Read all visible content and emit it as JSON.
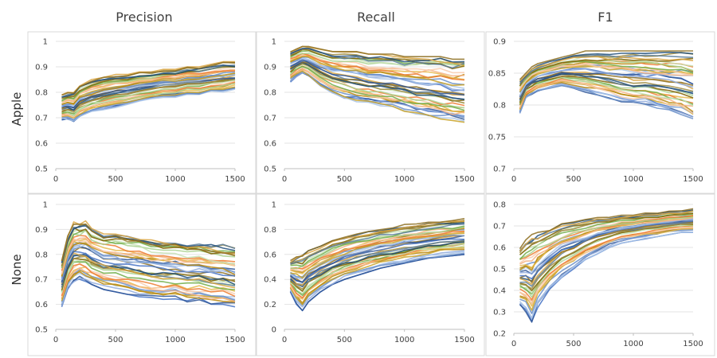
{
  "columns": [
    "Precision",
    "Recall",
    "F1"
  ],
  "rows": [
    "Apple",
    "None"
  ],
  "chart_data": [
    {
      "type": "line",
      "row": "Apple",
      "metric": "Precision",
      "x": [
        50,
        100,
        150,
        200,
        300,
        400,
        500,
        600,
        700,
        800,
        900,
        1000,
        1100,
        1200,
        1300,
        1400,
        1500
      ],
      "ylim": [
        0.5,
        1
      ],
      "yticks": [
        0.5,
        0.6,
        0.7,
        0.8,
        0.9,
        1
      ],
      "xticks": [
        0,
        500,
        1000,
        1500
      ],
      "band": {
        "low": [
          0.69,
          0.69,
          0.68,
          0.7,
          0.72,
          0.73,
          0.74,
          0.75,
          0.76,
          0.77,
          0.78,
          0.78,
          0.79,
          0.79,
          0.8,
          0.8,
          0.81
        ],
        "high": [
          0.79,
          0.8,
          0.8,
          0.83,
          0.85,
          0.86,
          0.87,
          0.87,
          0.88,
          0.88,
          0.89,
          0.89,
          0.9,
          0.9,
          0.91,
          0.92,
          0.92
        ]
      },
      "n_series": 40
    },
    {
      "type": "line",
      "row": "Apple",
      "metric": "Recall",
      "x": [
        50,
        100,
        150,
        200,
        300,
        400,
        500,
        600,
        700,
        800,
        900,
        1000,
        1100,
        1200,
        1300,
        1400,
        1500
      ],
      "ylim": [
        0.5,
        1
      ],
      "yticks": [
        0.5,
        0.6,
        0.7,
        0.8,
        0.9,
        1
      ],
      "xticks": [
        0,
        500,
        1000,
        1500
      ],
      "band": {
        "low": [
          0.84,
          0.86,
          0.87,
          0.86,
          0.82,
          0.79,
          0.77,
          0.76,
          0.75,
          0.74,
          0.73,
          0.72,
          0.71,
          0.7,
          0.69,
          0.68,
          0.67
        ],
        "high": [
          0.96,
          0.97,
          0.98,
          0.98,
          0.97,
          0.96,
          0.96,
          0.96,
          0.95,
          0.95,
          0.95,
          0.94,
          0.94,
          0.94,
          0.94,
          0.93,
          0.93
        ]
      },
      "n_series": 40
    },
    {
      "type": "line",
      "row": "Apple",
      "metric": "F1",
      "x": [
        50,
        100,
        150,
        200,
        300,
        400,
        500,
        600,
        700,
        800,
        900,
        1000,
        1100,
        1200,
        1300,
        1400,
        1500
      ],
      "ylim": [
        0.7,
        0.9
      ],
      "yticks": [
        0.7,
        0.75,
        0.8,
        0.85,
        0.9
      ],
      "xticks": [
        0,
        500,
        1000,
        1500
      ],
      "band": {
        "low": [
          0.785,
          0.81,
          0.815,
          0.82,
          0.825,
          0.83,
          0.825,
          0.82,
          0.815,
          0.81,
          0.805,
          0.8,
          0.8,
          0.795,
          0.79,
          0.785,
          0.775
        ],
        "high": [
          0.84,
          0.85,
          0.86,
          0.865,
          0.87,
          0.875,
          0.88,
          0.885,
          0.885,
          0.885,
          0.885,
          0.885,
          0.885,
          0.885,
          0.885,
          0.885,
          0.885
        ]
      },
      "n_series": 40
    },
    {
      "type": "line",
      "row": "None",
      "metric": "Precision",
      "x": [
        50,
        100,
        150,
        200,
        250,
        300,
        400,
        500,
        600,
        700,
        800,
        900,
        1000,
        1100,
        1200,
        1300,
        1400,
        1500
      ],
      "ylim": [
        0.5,
        1
      ],
      "yticks": [
        0.5,
        0.6,
        0.7,
        0.8,
        0.9,
        1
      ],
      "xticks": [
        0,
        500,
        1000,
        1500
      ],
      "band": {
        "low": [
          0.59,
          0.66,
          0.69,
          0.7,
          0.69,
          0.68,
          0.66,
          0.65,
          0.64,
          0.63,
          0.62,
          0.62,
          0.62,
          0.61,
          0.61,
          0.6,
          0.6,
          0.59
        ],
        "high": [
          0.78,
          0.88,
          0.93,
          0.93,
          0.94,
          0.91,
          0.89,
          0.89,
          0.88,
          0.88,
          0.87,
          0.86,
          0.86,
          0.85,
          0.85,
          0.84,
          0.84,
          0.83
        ]
      },
      "n_series": 40
    },
    {
      "type": "line",
      "row": "None",
      "metric": "Recall",
      "x": [
        50,
        100,
        150,
        200,
        300,
        400,
        500,
        600,
        700,
        800,
        900,
        1000,
        1100,
        1200,
        1300,
        1400,
        1500
      ],
      "ylim": [
        0,
        1
      ],
      "yticks": [
        0,
        0.2,
        0.4,
        0.6,
        0.8,
        1
      ],
      "xticks": [
        0,
        500,
        1000,
        1500
      ],
      "band": {
        "low": [
          0.3,
          0.2,
          0.15,
          0.22,
          0.3,
          0.36,
          0.4,
          0.43,
          0.46,
          0.49,
          0.51,
          0.53,
          0.55,
          0.57,
          0.58,
          0.59,
          0.6
        ],
        "high": [
          0.55,
          0.58,
          0.6,
          0.63,
          0.67,
          0.71,
          0.74,
          0.77,
          0.79,
          0.81,
          0.82,
          0.84,
          0.85,
          0.86,
          0.87,
          0.88,
          0.89
        ]
      },
      "n_series": 40
    },
    {
      "type": "line",
      "row": "None",
      "metric": "F1",
      "x": [
        50,
        100,
        150,
        200,
        300,
        400,
        500,
        600,
        700,
        800,
        900,
        1000,
        1100,
        1200,
        1300,
        1400,
        1500
      ],
      "ylim": [
        0.2,
        0.8
      ],
      "yticks": [
        0.2,
        0.3,
        0.4,
        0.5,
        0.6,
        0.7,
        0.8
      ],
      "xticks": [
        0,
        500,
        1000,
        1500
      ],
      "band": {
        "low": [
          0.33,
          0.3,
          0.25,
          0.32,
          0.4,
          0.46,
          0.5,
          0.54,
          0.57,
          0.6,
          0.62,
          0.63,
          0.64,
          0.65,
          0.66,
          0.67,
          0.67
        ],
        "high": [
          0.6,
          0.64,
          0.66,
          0.67,
          0.69,
          0.71,
          0.72,
          0.73,
          0.74,
          0.74,
          0.75,
          0.75,
          0.76,
          0.76,
          0.77,
          0.77,
          0.78
        ]
      },
      "n_series": 40
    }
  ],
  "palette": [
    "#4472c4",
    "#2e5597",
    "#8faadc",
    "#a9c4e8",
    "#6a8fc8",
    "#c9a227",
    "#b8860b",
    "#e6b84a",
    "#f4b183",
    "#f8cbad",
    "#ed7d31",
    "#a9d18e",
    "#70ad47",
    "#c5e0b4",
    "#7f6000",
    "#9e8a3e",
    "#5a7d9a",
    "#1f4e79",
    "#d9a441",
    "#8c6d1f"
  ]
}
